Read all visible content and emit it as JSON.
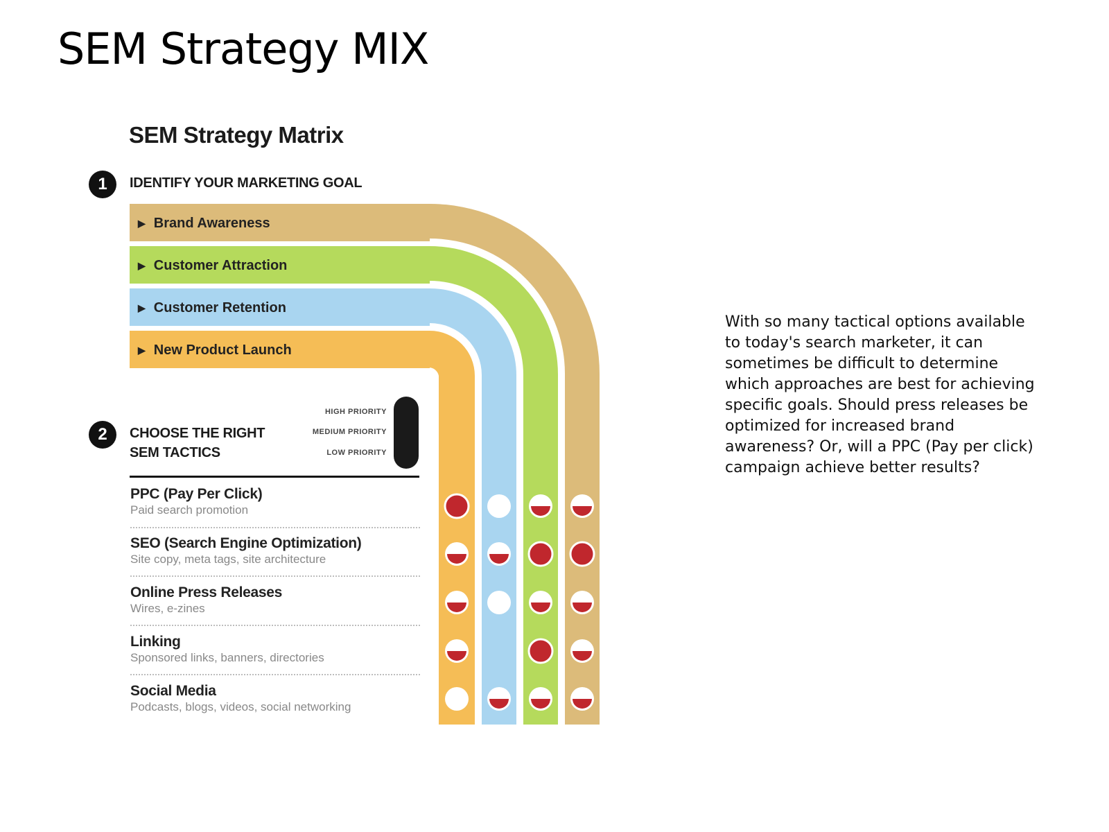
{
  "slide_title": "SEM Strategy MIX",
  "matrix": {
    "heading": "SEM Strategy Matrix",
    "step1": {
      "number": "1",
      "label": "IDENTIFY YOUR MARKETING GOAL"
    },
    "step2": {
      "number": "2",
      "label_line1": "CHOOSE THE RIGHT",
      "label_line2": "SEM TACTICS"
    },
    "goals": [
      {
        "label": "Brand Awareness",
        "color": "#dcbb7a"
      },
      {
        "label": "Customer Attraction",
        "color": "#b5da5c"
      },
      {
        "label": "Customer Retention",
        "color": "#a9d5f0"
      },
      {
        "label": "New Product Launch",
        "color": "#f5bd56"
      }
    ],
    "legend": {
      "high": "HIGH PRIORITY",
      "medium": "MEDIUM PRIORITY",
      "low": "LOW PRIORITY"
    },
    "priority_colors": {
      "fill": "#c0272d",
      "empty": "#ffffff"
    },
    "column_order": [
      "New Product Launch",
      "Customer Retention",
      "Customer Attraction",
      "Brand Awareness"
    ],
    "tactics": [
      {
        "name": "PPC (Pay Per Click)",
        "sub": "Paid search promotion",
        "priorities": [
          "high",
          "low",
          "medium",
          "medium"
        ]
      },
      {
        "name": "SEO (Search Engine Optimization)",
        "sub": "Site copy, meta tags, site architecture",
        "priorities": [
          "medium",
          "medium",
          "high",
          "high"
        ]
      },
      {
        "name": "Online Press Releases",
        "sub": "Wires, e-zines",
        "priorities": [
          "medium",
          "low",
          "medium",
          "medium"
        ]
      },
      {
        "name": "Linking",
        "sub": "Sponsored links, banners, directories",
        "priorities": [
          "medium",
          null,
          "high",
          "medium"
        ]
      },
      {
        "name": "Social Media",
        "sub": "Podcasts, blogs, videos, social networking",
        "priorities": [
          "low",
          "medium",
          "medium",
          "medium"
        ]
      }
    ]
  },
  "side_text": "With so many tactical options available to today's search marketer, it can sometimes be difficult to determine which approaches are best for achieving specific goals. Should press releases be optimized for increased brand awareness? Or, will a PPC (Pay per click) campaign achieve better results?"
}
